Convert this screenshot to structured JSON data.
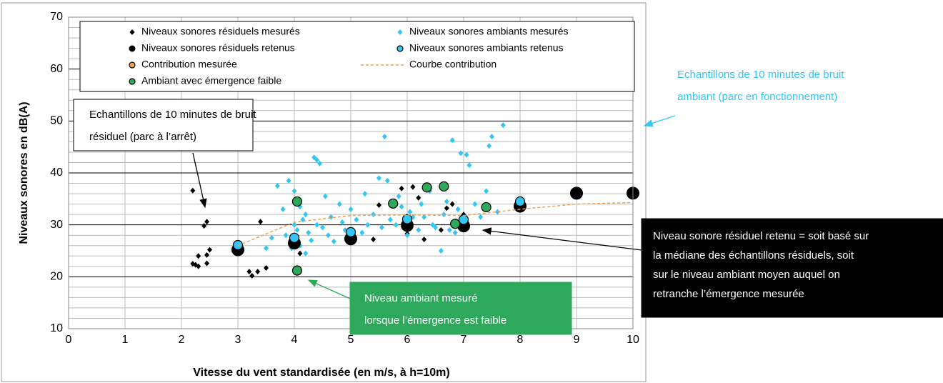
{
  "chart_data": {
    "type": "scatter",
    "xlabel": "Vitesse du vent standardisée (en m/s, à h=10m)",
    "ylabel": "Niveaux sonores en dB(A)",
    "xlim": [
      0,
      10
    ],
    "ylim": [
      10,
      70
    ],
    "xticks": [
      0,
      1,
      2,
      3,
      4,
      5,
      6,
      7,
      8,
      9,
      10
    ],
    "yticks": [
      10,
      20,
      30,
      40,
      50,
      60,
      70
    ],
    "grid": true,
    "minor_grid": true,
    "legend": "top",
    "series": [
      {
        "name": "Niveaux sonores résiduels mesurés",
        "color": "#000000",
        "marker": "diamond",
        "x": [
          2.2,
          2.2,
          2.25,
          2.3,
          2.3,
          2.4,
          2.45,
          2.45,
          2.45,
          2.5,
          3.2,
          3.25,
          3.35,
          3.4,
          3.5,
          4.0,
          4.1,
          5.4,
          5.5,
          5.9,
          6.0,
          6.1,
          6.2,
          6.3,
          6.6,
          6.7,
          6.8,
          7.0
        ],
        "values": [
          36.6,
          22.5,
          22.3,
          24,
          22,
          29.8,
          30.6,
          22.6,
          24.2,
          25.2,
          21,
          20.2,
          21,
          30.6,
          21.7,
          27.5,
          24.5,
          27.2,
          33.8,
          37,
          28.3,
          37.3,
          35.2,
          27.2,
          29,
          33.2,
          34,
          32
        ]
      },
      {
        "name": "Niveaux sonores ambiants mesurés",
        "color": "#33c6f4",
        "marker": "diamond",
        "x": [
          3.5,
          3.6,
          3.7,
          3.8,
          3.85,
          3.9,
          3.95,
          4.0,
          4.0,
          4.05,
          4.1,
          4.1,
          4.15,
          4.2,
          4.2,
          4.25,
          4.3,
          4.35,
          4.4,
          4.4,
          4.45,
          4.5,
          4.55,
          4.6,
          4.65,
          4.7,
          4.8,
          4.85,
          4.9,
          5.0,
          5.0,
          5.1,
          5.2,
          5.25,
          5.3,
          5.4,
          5.5,
          5.55,
          5.6,
          5.65,
          5.7,
          5.8,
          5.85,
          5.9,
          6.0,
          6.05,
          6.1,
          6.2,
          6.25,
          6.3,
          6.4,
          6.45,
          6.5,
          6.6,
          6.65,
          6.7,
          6.75,
          6.8,
          6.85,
          6.9,
          6.95,
          7.0,
          7.05,
          7.1,
          7.2,
          7.3,
          7.4,
          7.45,
          7.5,
          7.6,
          7.7
        ],
        "values": [
          25.5,
          27.5,
          37.5,
          33,
          28,
          38.5,
          25.5,
          36.5,
          30,
          29,
          33.5,
          26,
          31,
          32,
          24.5,
          28.5,
          27,
          43,
          42.5,
          30,
          41.8,
          29.5,
          35.5,
          28,
          31.5,
          26.8,
          34,
          30.5,
          29,
          27.5,
          33,
          31,
          28.5,
          36,
          30,
          32,
          39,
          29.5,
          47,
          38.5,
          31,
          30,
          35.5,
          33.5,
          28,
          32.5,
          31.5,
          29,
          34,
          31.5,
          36.5,
          30,
          29.5,
          25,
          32,
          34.5,
          29,
          46.3,
          28.5,
          33,
          43.8,
          30.5,
          43.5,
          41.5,
          34,
          31.5,
          36.5,
          45.2,
          47,
          32.5,
          49.2
        ]
      },
      {
        "name": "Niveaux sonores résiduels retenus",
        "color": "#000000",
        "marker": "big-circle",
        "x": [
          3,
          4,
          5,
          6,
          7,
          8,
          9,
          10
        ],
        "values": [
          25.2,
          26.5,
          27.3,
          29.9,
          29.8,
          33.6,
          36.1,
          36.1
        ]
      },
      {
        "name": "Niveaux sonores ambiants retenus",
        "color": "#33c6f4",
        "marker": "circle",
        "x": [
          3,
          4,
          5,
          6,
          7,
          8
        ],
        "values": [
          26.1,
          27.5,
          28.6,
          31.1,
          31,
          34.5
        ]
      },
      {
        "name": "Contribution mesurée",
        "color": "#f0a050",
        "marker": "circle",
        "x": [],
        "values": []
      },
      {
        "name": "Courbe contribution",
        "color": "#f0a050",
        "marker": "line",
        "x": [
          3,
          4,
          5,
          6,
          7,
          8,
          9,
          10
        ],
        "values": [
          26,
          30.5,
          31.8,
          31.9,
          31.8,
          33,
          34,
          34.3
        ]
      },
      {
        "name": "Ambiant avec émergence faible",
        "color": "#2ea85a",
        "marker": "circle",
        "x": [
          4.05,
          4.05,
          5.75,
          6.35,
          6.65,
          6.85,
          7.4
        ],
        "values": [
          34.5,
          21.2,
          34.1,
          37.2,
          37.4,
          30.2,
          33.4
        ]
      }
    ],
    "annotations": [
      {
        "lines": [
          "Echantillons de 10 minutes de bruit",
          "résiduel (parc à l’arrêt)"
        ]
      },
      {
        "lines": [
          "Echantillons de 10 minutes de bruit",
          "ambiant (parc en fonctionnement)"
        ]
      },
      {
        "lines": [
          "Niveau ambiant mesuré",
          "lorsque l’émergence est faible"
        ]
      },
      {
        "lines": [
          "Niveau sonore résiduel retenu = soit basé sur",
          "la médiane des échantillons résiduels, soit",
          "sur le niveau ambiant moyen auquel on",
          "retranche l’émergence mesurée"
        ]
      }
    ]
  }
}
